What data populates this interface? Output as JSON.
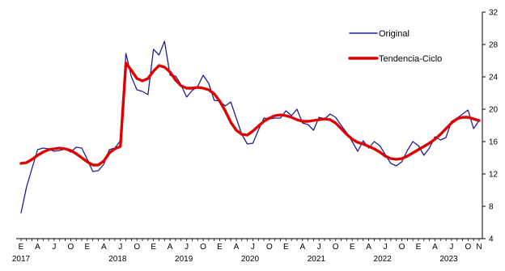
{
  "chart_data": {
    "type": "line",
    "title": "",
    "xlabel": "",
    "ylabel": "",
    "ylim": [
      4,
      32
    ],
    "y_ticks": [
      4,
      8,
      12,
      16,
      20,
      24,
      28,
      32
    ],
    "y_axis_position": "right",
    "grid": false,
    "legend_position": "top-right",
    "x_month_letters": [
      "E",
      "A",
      "J",
      "O"
    ],
    "x_extra_letters": [
      "N"
    ],
    "years": [
      "2017",
      "2018",
      "2019",
      "2020",
      "2021",
      "2022",
      "2023"
    ],
    "period": {
      "start": "2017-01",
      "end": "2023-11",
      "frequency": "monthly"
    },
    "colors": {
      "original": "#1f1f8f",
      "trend": "#e00000",
      "axis": "#000000"
    },
    "series": [
      {
        "name": "Original",
        "style": "thin",
        "values": [
          7.2,
          10.4,
          12.7,
          15.0,
          15.2,
          15.1,
          14.8,
          14.9,
          15.1,
          14.7,
          15.3,
          15.2,
          13.8,
          12.3,
          12.4,
          13.2,
          15.0,
          15.2,
          16.1,
          26.9,
          24.0,
          22.4,
          22.2,
          21.8,
          27.4,
          26.7,
          28.4,
          24.2,
          24.1,
          23.0,
          21.5,
          22.3,
          22.8,
          24.2,
          23.2,
          21.1,
          21.0,
          20.4,
          20.9,
          18.9,
          16.9,
          15.7,
          15.8,
          17.4,
          18.9,
          18.8,
          18.9,
          18.9,
          19.8,
          19.2,
          20.0,
          18.3,
          18.1,
          17.4,
          19.0,
          18.8,
          19.4,
          19.0,
          18.0,
          17.1,
          16.0,
          14.8,
          16.1,
          15.2,
          16.0,
          15.5,
          14.4,
          13.3,
          13.0,
          13.5,
          14.9,
          16.0,
          15.5,
          14.3,
          15.2,
          16.6,
          16.2,
          16.5,
          18.5,
          18.9,
          19.4,
          19.9,
          17.6,
          18.6
        ]
      },
      {
        "name": "Tendencia-Ciclo",
        "style": "thick",
        "values": [
          13.3,
          13.4,
          13.8,
          14.3,
          14.7,
          15.0,
          15.1,
          15.2,
          15.1,
          14.9,
          14.5,
          14.0,
          13.5,
          13.1,
          13.1,
          13.6,
          14.6,
          15.1,
          15.4,
          25.7,
          24.8,
          23.8,
          23.5,
          23.8,
          24.7,
          25.4,
          25.2,
          24.6,
          23.6,
          22.9,
          22.6,
          22.6,
          22.7,
          22.6,
          22.4,
          21.9,
          21.0,
          19.8,
          18.4,
          17.4,
          16.9,
          16.8,
          17.3,
          17.9,
          18.5,
          18.9,
          19.2,
          19.3,
          19.2,
          19.0,
          18.7,
          18.5,
          18.5,
          18.6,
          18.7,
          18.8,
          18.7,
          18.3,
          17.6,
          16.9,
          16.3,
          15.9,
          15.7,
          15.4,
          15.1,
          14.7,
          14.2,
          13.9,
          13.8,
          13.9,
          14.2,
          14.6,
          15.0,
          15.4,
          15.8,
          16.3,
          16.9,
          17.6,
          18.3,
          18.8,
          19.0,
          19.0,
          18.8,
          18.6
        ]
      }
    ]
  }
}
